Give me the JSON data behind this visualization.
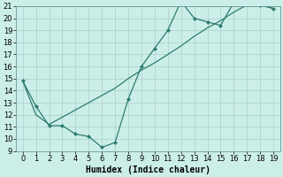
{
  "xlabel": "Humidex (Indice chaleur)",
  "xlim": [
    -0.5,
    19.5
  ],
  "ylim": [
    9,
    21
  ],
  "xticks": [
    0,
    1,
    2,
    3,
    4,
    5,
    6,
    7,
    8,
    9,
    10,
    11,
    12,
    13,
    14,
    15,
    16,
    17,
    18,
    19
  ],
  "yticks": [
    9,
    10,
    11,
    12,
    13,
    14,
    15,
    16,
    17,
    18,
    19,
    20,
    21
  ],
  "line1_x": [
    0,
    1,
    2,
    3,
    4,
    5,
    6,
    7,
    8,
    9,
    10,
    11,
    12,
    13,
    14,
    15,
    16,
    17,
    18,
    19
  ],
  "line1_y": [
    14.8,
    12.7,
    11.1,
    11.1,
    10.4,
    10.2,
    9.3,
    9.7,
    13.3,
    16.0,
    17.5,
    19.0,
    21.4,
    20.0,
    19.7,
    19.4,
    21.3,
    21.3,
    21.1,
    20.8
  ],
  "line2_x": [
    0,
    1,
    2,
    3,
    4,
    5,
    6,
    7,
    8,
    9,
    10,
    11,
    12,
    13,
    14,
    15,
    16,
    17,
    18,
    19
  ],
  "line2_y": [
    14.8,
    12.0,
    11.2,
    11.8,
    12.4,
    13.0,
    13.6,
    14.2,
    15.0,
    15.7,
    16.3,
    17.0,
    17.7,
    18.5,
    19.2,
    19.8,
    20.5,
    21.1,
    21.2,
    20.8
  ],
  "line_color": "#2e7d6e",
  "bg_color": "#cceee8",
  "grid_color": "#b0d4ce",
  "tick_fontsize": 6,
  "xlabel_fontsize": 7
}
